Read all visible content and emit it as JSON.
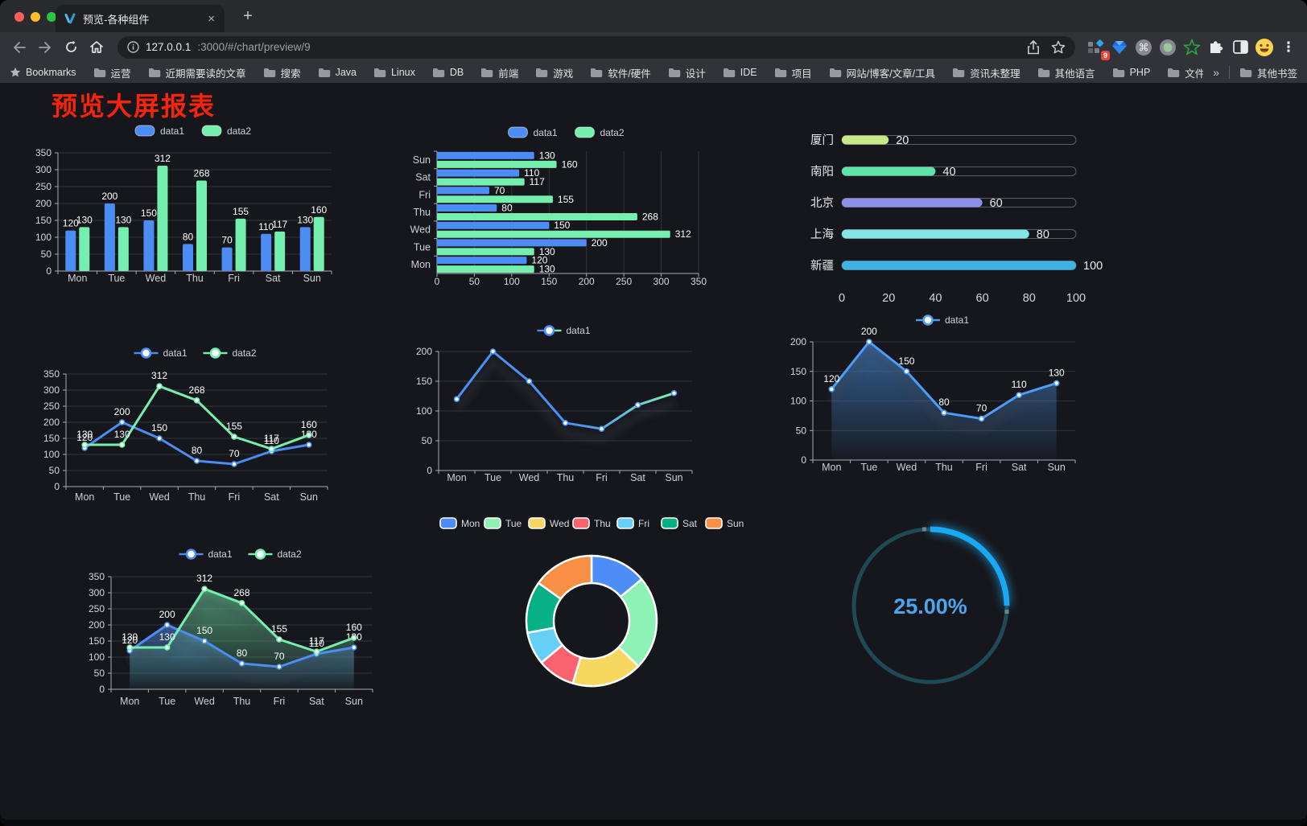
{
  "browser": {
    "traffic_light_colors": [
      "#ff5f57",
      "#febc2e",
      "#28c840"
    ],
    "tab": {
      "title": "预览-各种组件",
      "close_glyph": "×"
    },
    "new_tab_glyph": "+",
    "url": {
      "host": "127.0.0.1",
      "rest": ":3000/#/chart/preview/9"
    },
    "extension_badge": "9",
    "bookmarks_label": "Bookmarks",
    "bookmarks": [
      "运营",
      "近期需要读的文章",
      "搜索",
      "Java",
      "Linux",
      "DB",
      "前端",
      "游戏",
      "软件/硬件",
      "设计",
      "IDE",
      "项目",
      "网站/博客/文章/工具",
      "资讯未整理",
      "其他语言",
      "PHP",
      "文件服务器"
    ],
    "bookmarks_overflow_glyph": "»",
    "other_bookmarks_label": "其他书签",
    "menu_glyph": "⋮"
  },
  "page": {
    "title": "预览大屏报表",
    "title_color": "#f5240d"
  },
  "chart_data": [
    {
      "id": "grouped-bar",
      "type": "bar",
      "orientation": "vertical",
      "categories": [
        "Mon",
        "Tue",
        "Wed",
        "Thu",
        "Fri",
        "Sat",
        "Sun"
      ],
      "series": [
        {
          "name": "data1",
          "color": "#4c8df5",
          "values": [
            120,
            200,
            150,
            80,
            70,
            110,
            130
          ]
        },
        {
          "name": "data2",
          "color": "#75efae",
          "values": [
            130,
            130,
            312,
            268,
            155,
            117,
            160
          ]
        }
      ],
      "ylim": [
        0,
        350
      ],
      "tick_step": 50,
      "data_labels": true,
      "legend_position": "top",
      "grid": true
    },
    {
      "id": "grouped-bar-horizontal",
      "type": "bar",
      "orientation": "horizontal",
      "categories": [
        "Mon",
        "Tue",
        "Wed",
        "Thu",
        "Fri",
        "Sat",
        "Sun"
      ],
      "series": [
        {
          "name": "data1",
          "color": "#4c8df5",
          "values": [
            120,
            200,
            150,
            80,
            70,
            110,
            130
          ]
        },
        {
          "name": "data2",
          "color": "#75efae",
          "values": [
            130,
            130,
            312,
            268,
            155,
            117,
            160
          ]
        }
      ],
      "xlim": [
        0,
        350
      ],
      "tick_step": 50,
      "data_labels": true,
      "legend_position": "top",
      "grid": true
    },
    {
      "id": "city-progress-capsules",
      "type": "bar",
      "orientation": "capsule",
      "items": [
        {
          "label": "厦门",
          "value": 20,
          "color": "#c9e88a"
        },
        {
          "label": "南阳",
          "value": 40,
          "color": "#5fe3a9"
        },
        {
          "label": "北京",
          "value": 60,
          "color": "#8b8fea"
        },
        {
          "label": "上海",
          "value": 80,
          "color": "#83e6e4"
        },
        {
          "label": "新疆",
          "value": 100,
          "color": "#3fb2e4"
        }
      ],
      "xlim": [
        0,
        100
      ],
      "tick_step": 20,
      "data_labels": true
    },
    {
      "id": "line-two-series",
      "type": "line",
      "categories": [
        "Mon",
        "Tue",
        "Wed",
        "Thu",
        "Fri",
        "Sat",
        "Sun"
      ],
      "series": [
        {
          "name": "data1",
          "color": "#4c8df5",
          "values": [
            120,
            200,
            150,
            80,
            70,
            110,
            130
          ]
        },
        {
          "name": "data2",
          "color": "#75efae",
          "values": [
            130,
            130,
            312,
            268,
            155,
            117,
            160
          ]
        }
      ],
      "ylim": [
        0,
        350
      ],
      "tick_step": 50,
      "data_labels": true,
      "markers": true,
      "legend_position": "top",
      "grid": true
    },
    {
      "id": "line-gradient",
      "type": "line",
      "categories": [
        "Mon",
        "Tue",
        "Wed",
        "Thu",
        "Fri",
        "Sat",
        "Sun"
      ],
      "series": [
        {
          "name": "data1",
          "gradient": [
            "#4a90f5",
            "#7df0b0"
          ],
          "color": "#4a90f5",
          "values": [
            120,
            200,
            150,
            80,
            70,
            110,
            130
          ]
        }
      ],
      "ylim": [
        0,
        200
      ],
      "tick_step": 50,
      "data_labels": false,
      "markers": true,
      "shadow": true,
      "legend_position": "top",
      "grid": true
    },
    {
      "id": "area-single",
      "type": "area",
      "categories": [
        "Mon",
        "Tue",
        "Wed",
        "Thu",
        "Fri",
        "Sat",
        "Sun"
      ],
      "series": [
        {
          "name": "data1",
          "color": "#4e9df8",
          "area": true,
          "values": [
            120,
            200,
            150,
            80,
            70,
            110,
            130
          ]
        }
      ],
      "ylim": [
        0,
        200
      ],
      "tick_step": 50,
      "data_labels": true,
      "markers": true,
      "shadow": true,
      "legend_position": "top",
      "grid": true
    },
    {
      "id": "area-two-series",
      "type": "area",
      "categories": [
        "Mon",
        "Tue",
        "Wed",
        "Thu",
        "Fri",
        "Sat",
        "Sun"
      ],
      "series": [
        {
          "name": "data1",
          "color": "#4c8df5",
          "area": true,
          "values": [
            120,
            200,
            150,
            80,
            70,
            110,
            130
          ]
        },
        {
          "name": "data2",
          "color": "#75efae",
          "area": true,
          "values": [
            130,
            130,
            312,
            268,
            155,
            117,
            160
          ]
        }
      ],
      "ylim": [
        0,
        350
      ],
      "tick_step": 50,
      "data_labels": true,
      "markers": true,
      "shadow": true,
      "legend_position": "top",
      "grid": true
    },
    {
      "id": "weekday-doughnut",
      "type": "pie",
      "labels": [
        "Mon",
        "Tue",
        "Wed",
        "Thu",
        "Fri",
        "Sat",
        "Sun"
      ],
      "values": [
        120,
        200,
        150,
        80,
        70,
        110,
        130
      ],
      "colors": [
        "#4c8df6",
        "#8df2b3",
        "#f6d860",
        "#f8636f",
        "#66cff5",
        "#07b186",
        "#f78f44"
      ],
      "donut": true,
      "border_color": "#ffffff",
      "legend_position": "top"
    },
    {
      "id": "percent-gauge",
      "type": "gauge",
      "value": 25,
      "display": "25.00%",
      "max": 100,
      "color": "#18a9f2",
      "track_color": "#1d4a55",
      "text_color": "#4da5ee"
    }
  ],
  "chart_style": {
    "axis_line": "#a6acb5",
    "grid_line": "#31353e",
    "tick_label": "#d4d7dc",
    "category_label": "#ccd0d6",
    "data_label": "#ffffff",
    "legend_label": "#cfd3d8"
  }
}
